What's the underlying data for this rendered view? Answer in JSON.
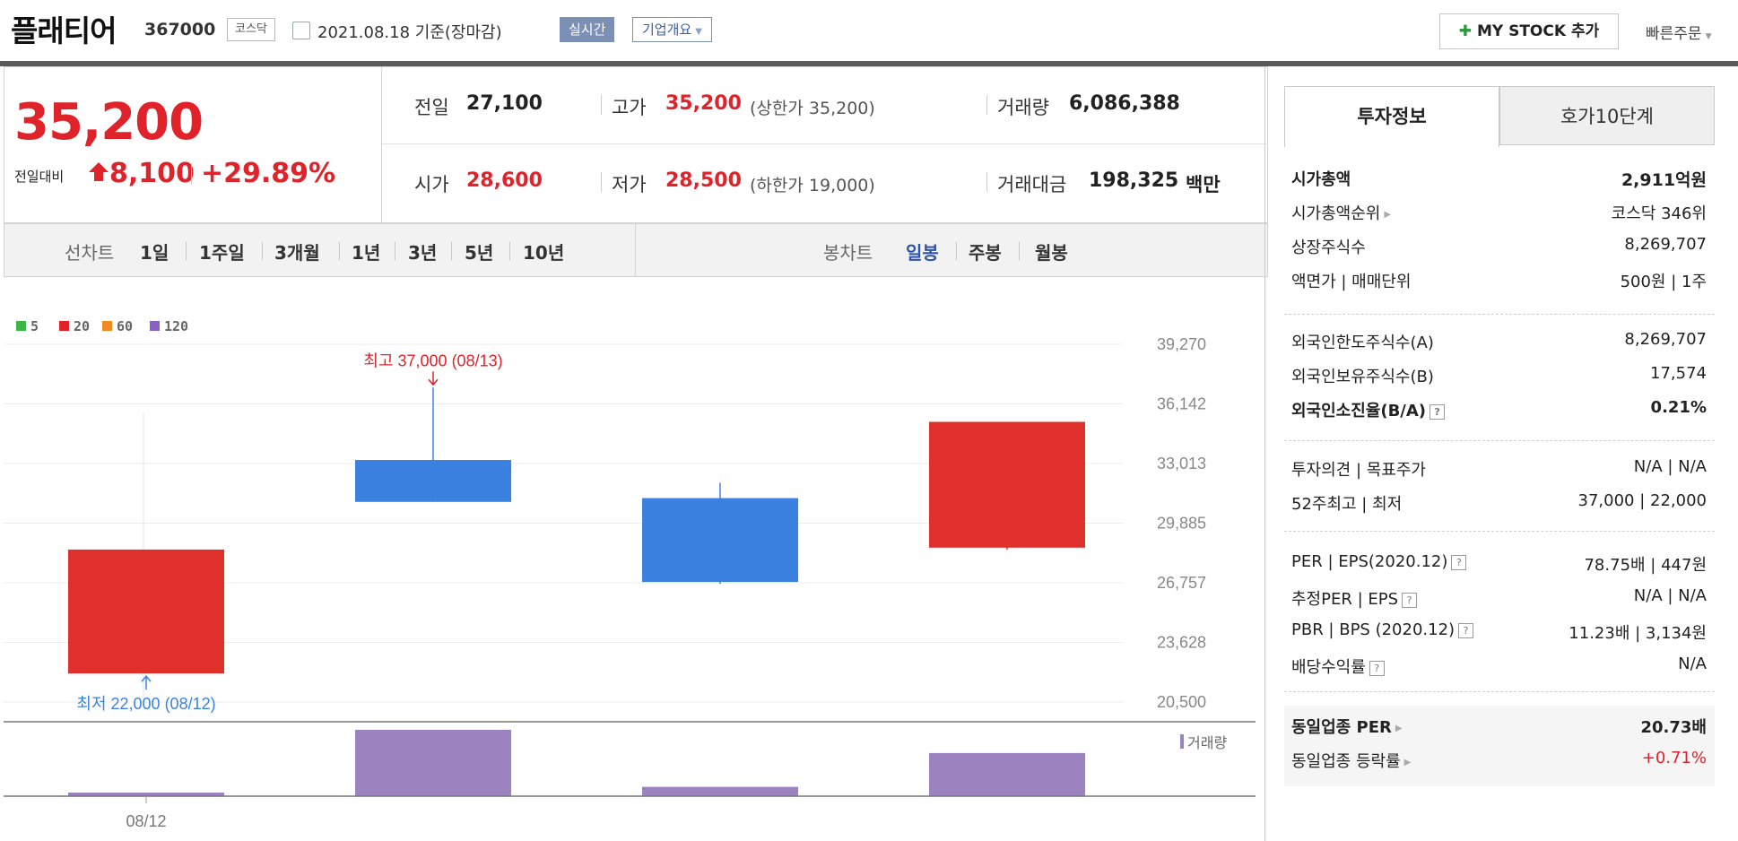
{
  "header": {
    "name": "플래티어",
    "code": "367000",
    "market": "코스닥",
    "date": "2021.08.18 기준(장마감)",
    "realtime": "실시간",
    "overview": "기업개요",
    "mystock": "MY STOCK 추가",
    "quick_order": "빠른주문"
  },
  "price": {
    "current": "35,200",
    "compare_label": "전일대비",
    "change": "8,100",
    "rate": "+29.89%",
    "prev_label": "전일",
    "prev": "27,100",
    "high_label": "고가",
    "high": "35,200",
    "upper_limit": "(상한가 35,200)",
    "volume_label": "거래량",
    "volume": "6,086,388",
    "open_label": "시가",
    "open": "28,600",
    "low_label": "저가",
    "low": "28,500",
    "lower_limit": "(하한가 19,000)",
    "amount_label": "거래대금",
    "amount": "198,325",
    "amount_unit": "백만"
  },
  "tabs": {
    "line_label": "선차트",
    "line_periods": [
      "1일",
      "1주일",
      "3개월",
      "1년",
      "3년",
      "5년",
      "10년"
    ],
    "candle_label": "봉차트",
    "candle_periods": [
      "일봉",
      "주봉",
      "월봉"
    ],
    "candle_selected": "일봉"
  },
  "chart_data": {
    "type": "candlestick",
    "legend": [
      "5",
      "20",
      "60",
      "120"
    ],
    "legend_colors": [
      "#3cb54a",
      "#e0232a",
      "#f08a24",
      "#8c5fc6"
    ],
    "y_ticks": [
      "39,270",
      "36,142",
      "33,013",
      "29,885",
      "26,757",
      "23,628",
      "20,500"
    ],
    "ylim": [
      20500,
      39270
    ],
    "candles": [
      {
        "open": 22000,
        "close": 28500,
        "high": 28500,
        "low": 22000,
        "up": true
      },
      {
        "open": 33200,
        "close": 31000,
        "high": 37000,
        "low": 31000,
        "up": false
      },
      {
        "open": 31200,
        "close": 26800,
        "high": 32000,
        "low": 26700,
        "up": false
      },
      {
        "open": 28600,
        "close": 35200,
        "high": 35200,
        "low": 28500,
        "up": true
      }
    ],
    "volume": [
      0.05,
      1.0,
      0.14,
      0.65
    ],
    "high_annotation": "최고 37,000 (08/13)",
    "low_annotation": "최저 22,000 (08/12)",
    "volume_label": "거래량",
    "x_label": "08/12"
  },
  "invest": {
    "tab1": "투자정보",
    "tab2": "호가10단계",
    "rows1": [
      {
        "k": "시가총액",
        "v": "2,911억원"
      },
      {
        "k": "시가총액순위",
        "v": "코스닥 346위"
      },
      {
        "k": "상장주식수",
        "v": "8,269,707"
      },
      {
        "k": "액면가 | 매매단위",
        "v": "500원 | 1주"
      }
    ],
    "rows2": [
      {
        "k": "외국인한도주식수(A)",
        "v": "8,269,707"
      },
      {
        "k": "외국인보유주식수(B)",
        "v": "17,574"
      },
      {
        "k": "외국인소진율(B/A)",
        "v": "0.21%"
      }
    ],
    "rows3": [
      {
        "k": "투자의견 | 목표주가",
        "v": "N/A | N/A"
      },
      {
        "k": "52주최고 | 최저",
        "v": "37,000 | 22,000"
      }
    ],
    "rows4": [
      {
        "k": "PER | EPS(2020.12)",
        "v": "78.75배 | 447원"
      },
      {
        "k": "추정PER | EPS",
        "v": "N/A | N/A"
      },
      {
        "k": "PBR | BPS (2020.12)",
        "v": "11.23배 | 3,134원"
      },
      {
        "k": "배당수익률",
        "v": "N/A"
      }
    ],
    "rows5": [
      {
        "k": "동일업종 PER",
        "v": "20.73배"
      },
      {
        "k": "동일업종 등락률",
        "v": "+0.71%"
      }
    ]
  }
}
